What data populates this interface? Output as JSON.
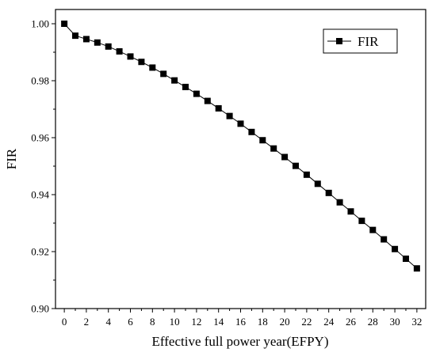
{
  "chart_data": {
    "type": "line",
    "title": "",
    "xlabel": "Effective full power year(EFPY)",
    "ylabel": "FIR",
    "xlim": [
      -0.8,
      32.8
    ],
    "ylim": [
      0.9,
      1.005
    ],
    "x_ticks": [
      "0",
      "2",
      "4",
      "6",
      "8",
      "10",
      "12",
      "14",
      "16",
      "18",
      "20",
      "22",
      "24",
      "26",
      "28",
      "30",
      "32"
    ],
    "y_ticks": [
      "0.90",
      "0.92",
      "0.94",
      "0.96",
      "0.98",
      "1.00"
    ],
    "legend_position": "top-right",
    "grid": false,
    "marker": "square",
    "series": [
      {
        "name": "FIR",
        "color": "#000000",
        "x": [
          0,
          1,
          2,
          3,
          4,
          5,
          6,
          7,
          8,
          9,
          10,
          11,
          12,
          13,
          14,
          15,
          16,
          17,
          18,
          19,
          20,
          21,
          22,
          23,
          24,
          25,
          26,
          27,
          28,
          29,
          30,
          31,
          32
        ],
        "values": [
          1.0,
          0.9958,
          0.9946,
          0.9934,
          0.992,
          0.9903,
          0.9885,
          0.9866,
          0.9846,
          0.9824,
          0.9801,
          0.9778,
          0.9754,
          0.9729,
          0.9703,
          0.9676,
          0.9649,
          0.962,
          0.9591,
          0.9562,
          0.9532,
          0.9501,
          0.947,
          0.9438,
          0.9406,
          0.9373,
          0.9341,
          0.9308,
          0.9276,
          0.9243,
          0.9209,
          0.9175,
          0.9141
        ]
      }
    ]
  }
}
